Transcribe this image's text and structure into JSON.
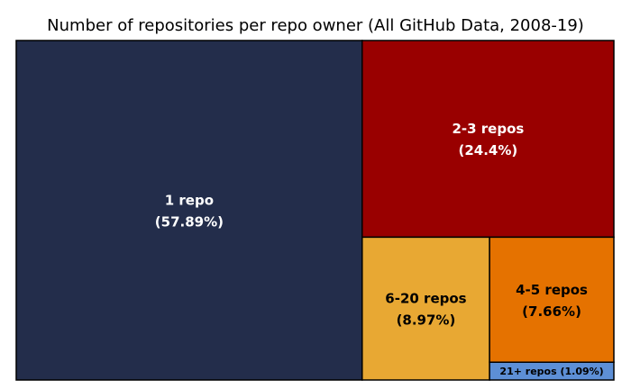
{
  "chart_data": {
    "type": "treemap",
    "title": "Number of repositories per repo owner (All GitHub Data, 2008-19)",
    "cells": [
      {
        "name": "1 repo",
        "percent_label": "(57.89%)",
        "value": 57.89,
        "color": "#232d4b",
        "text_color": "#ffffff"
      },
      {
        "name": "2-3 repos",
        "percent_label": "(24.4%)",
        "value": 24.4,
        "color": "#990000",
        "text_color": "#ffffff"
      },
      {
        "name": "6-20 repos",
        "percent_label": "(8.97%)",
        "value": 8.97,
        "color": "#e8a833",
        "text_color": "#000000"
      },
      {
        "name": "4-5 repos",
        "percent_label": "(7.66%)",
        "value": 7.66,
        "color": "#e57200",
        "text_color": "#000000"
      },
      {
        "name": "21+ repos",
        "percent_label": "(1.09%)",
        "value": 1.09,
        "color": "#5d8fd6",
        "text_color": "#000000"
      }
    ]
  }
}
